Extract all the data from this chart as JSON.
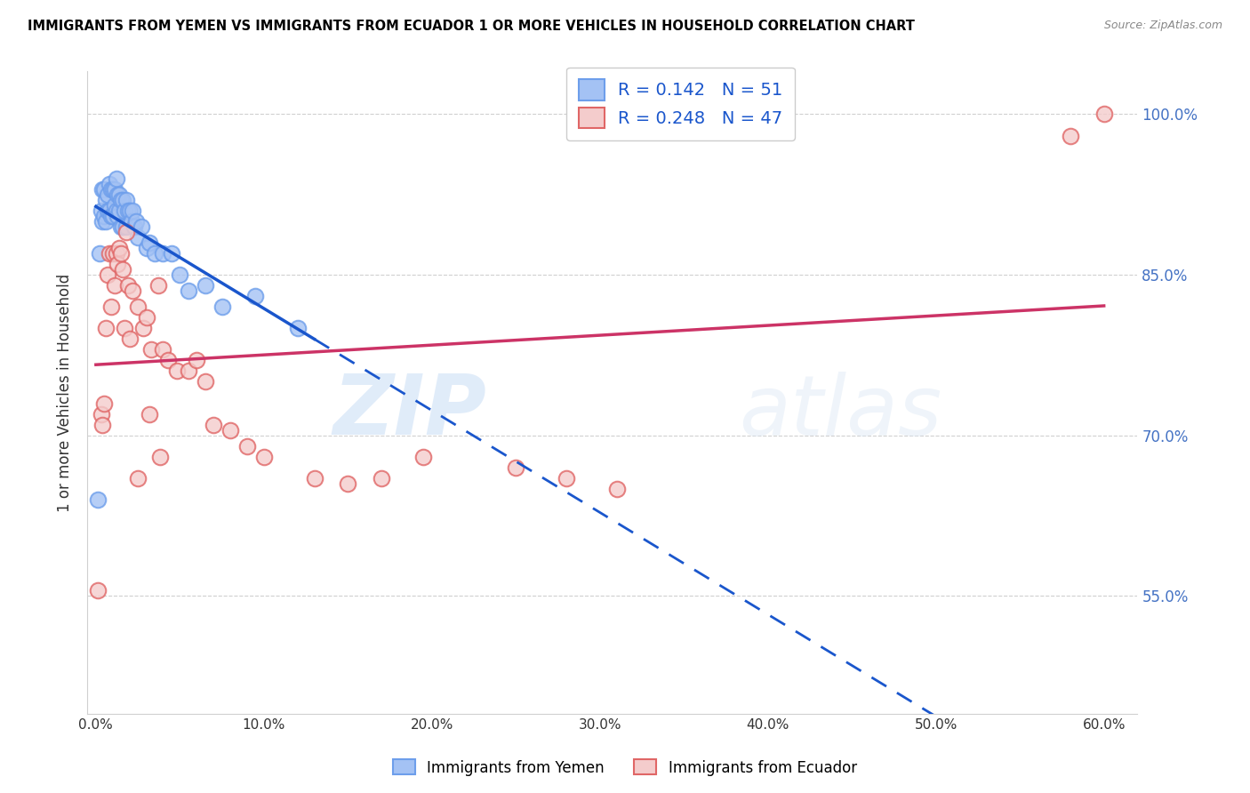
{
  "title": "IMMIGRANTS FROM YEMEN VS IMMIGRANTS FROM ECUADOR 1 OR MORE VEHICLES IN HOUSEHOLD CORRELATION CHART",
  "source": "Source: ZipAtlas.com",
  "ylabel": "1 or more Vehicles in Household",
  "xlim": [
    -0.005,
    0.62
  ],
  "ylim": [
    0.44,
    1.04
  ],
  "yticks": [
    0.55,
    0.7,
    0.85,
    1.0
  ],
  "ytick_labels": [
    "55.0%",
    "70.0%",
    "85.0%",
    "100.0%"
  ],
  "xticks": [
    0.0,
    0.1,
    0.2,
    0.3,
    0.4,
    0.5,
    0.6
  ],
  "xtick_labels": [
    "0.0%",
    "10.0%",
    "20.0%",
    "30.0%",
    "40.0%",
    "50.0%",
    "60.0%"
  ],
  "yemen_face": "#a4c2f4",
  "yemen_edge": "#6d9eeb",
  "ecuador_face": "#f4cccc",
  "ecuador_edge": "#e06666",
  "trend_yemen": "#1a56cc",
  "trend_ecuador": "#cc3366",
  "R_yemen": 0.142,
  "N_yemen": 51,
  "R_ecuador": 0.248,
  "N_ecuador": 47,
  "legend_labels": [
    "Immigrants from Yemen",
    "Immigrants from Ecuador"
  ],
  "watermark": "ZIPatlas",
  "bg": "#ffffff",
  "yemen_x": [
    0.001,
    0.002,
    0.003,
    0.004,
    0.004,
    0.005,
    0.005,
    0.006,
    0.006,
    0.007,
    0.007,
    0.008,
    0.008,
    0.009,
    0.009,
    0.01,
    0.01,
    0.011,
    0.011,
    0.012,
    0.012,
    0.013,
    0.013,
    0.014,
    0.014,
    0.015,
    0.015,
    0.016,
    0.016,
    0.017,
    0.018,
    0.018,
    0.019,
    0.02,
    0.021,
    0.022,
    0.023,
    0.024,
    0.025,
    0.027,
    0.03,
    0.032,
    0.035,
    0.04,
    0.045,
    0.05,
    0.055,
    0.065,
    0.075,
    0.095,
    0.12
  ],
  "yemen_y": [
    0.64,
    0.87,
    0.91,
    0.93,
    0.9,
    0.93,
    0.905,
    0.92,
    0.9,
    0.925,
    0.91,
    0.935,
    0.91,
    0.93,
    0.905,
    0.93,
    0.905,
    0.93,
    0.915,
    0.94,
    0.91,
    0.925,
    0.905,
    0.925,
    0.91,
    0.92,
    0.895,
    0.92,
    0.895,
    0.91,
    0.92,
    0.895,
    0.91,
    0.91,
    0.9,
    0.91,
    0.895,
    0.9,
    0.885,
    0.895,
    0.875,
    0.88,
    0.87,
    0.87,
    0.87,
    0.85,
    0.835,
    0.84,
    0.82,
    0.83,
    0.8
  ],
  "ecuador_x": [
    0.001,
    0.003,
    0.004,
    0.005,
    0.006,
    0.007,
    0.008,
    0.009,
    0.01,
    0.011,
    0.012,
    0.013,
    0.014,
    0.015,
    0.016,
    0.017,
    0.018,
    0.019,
    0.02,
    0.022,
    0.025,
    0.028,
    0.03,
    0.033,
    0.037,
    0.04,
    0.043,
    0.048,
    0.055,
    0.06,
    0.065,
    0.07,
    0.08,
    0.09,
    0.1,
    0.13,
    0.15,
    0.17,
    0.195,
    0.25,
    0.28,
    0.31,
    0.58,
    0.6,
    0.025,
    0.032,
    0.038
  ],
  "ecuador_y": [
    0.555,
    0.72,
    0.71,
    0.73,
    0.8,
    0.85,
    0.87,
    0.82,
    0.87,
    0.84,
    0.87,
    0.86,
    0.875,
    0.87,
    0.855,
    0.8,
    0.89,
    0.84,
    0.79,
    0.835,
    0.82,
    0.8,
    0.81,
    0.78,
    0.84,
    0.78,
    0.77,
    0.76,
    0.76,
    0.77,
    0.75,
    0.71,
    0.705,
    0.69,
    0.68,
    0.66,
    0.655,
    0.66,
    0.68,
    0.67,
    0.66,
    0.65,
    0.98,
    1.0,
    0.66,
    0.72,
    0.68
  ]
}
